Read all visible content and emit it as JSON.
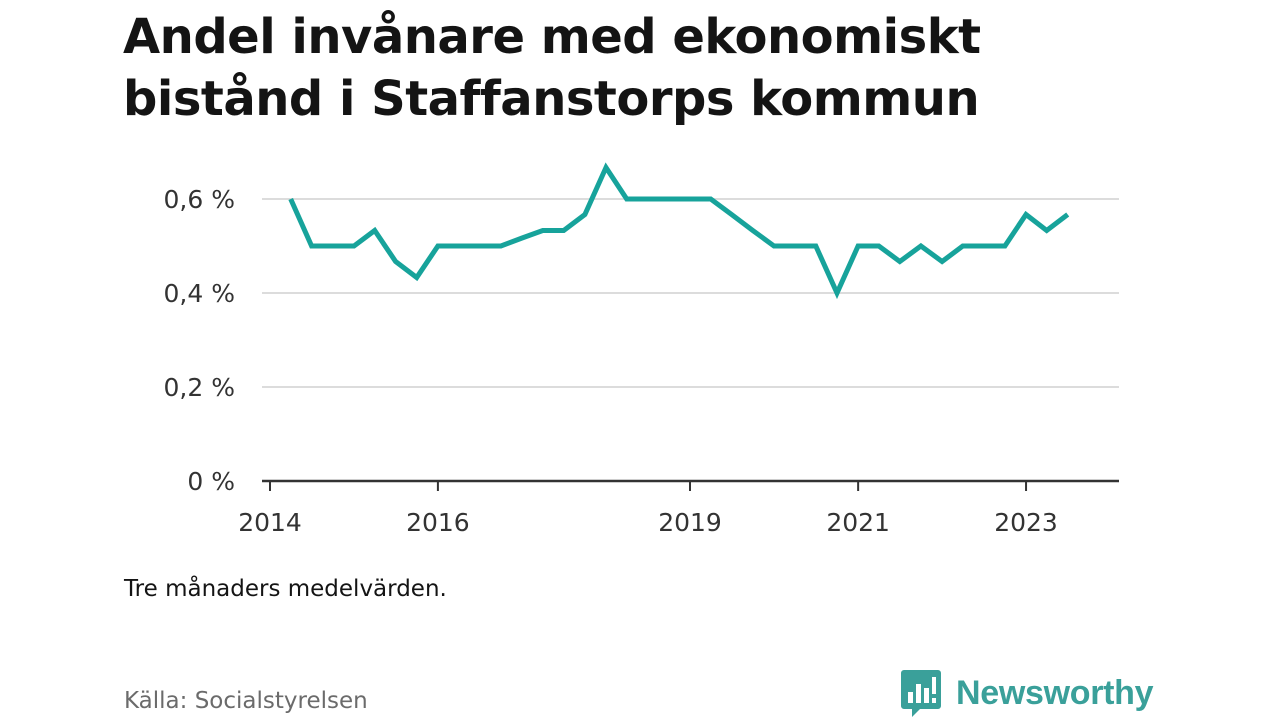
{
  "title_lines": [
    "Andel invånare med ekonomiskt",
    "bistånd i Staffanstorps kommun"
  ],
  "note": "Tre månaders medelvärden.",
  "source": "Källa: Socialstyrelsen",
  "brand": {
    "name": "Newsworthy",
    "icon": "newsworthy-logo-icon",
    "color": "#3aa09a"
  },
  "chart_data": {
    "type": "line",
    "title": "Andel invånare med ekonomiskt bistånd i Staffanstorps kommun",
    "xlabel": "",
    "ylabel": "",
    "ylim": [
      0,
      0.7
    ],
    "xlim": [
      "2014-01-01",
      "2024-01-01"
    ],
    "y_ticks": [
      0,
      0.2,
      0.4,
      0.6
    ],
    "y_tick_labels": [
      "0 %",
      "0,2 %",
      "0,4 %",
      "0,6 %"
    ],
    "x_ticks": [
      "2014-01-01",
      "2016-01-01",
      "2019-01-01",
      "2021-01-01",
      "2023-01-01"
    ],
    "x_tick_labels": [
      "2014",
      "2016",
      "2019",
      "2021",
      "2023"
    ],
    "grid": true,
    "line_color": "#17a39b",
    "series": [
      {
        "x": [
          "2014-04-01",
          "2014-07-01",
          "2014-10-01",
          "2015-01-01",
          "2015-04-01",
          "2015-07-01",
          "2015-10-01",
          "2016-01-01",
          "2016-04-01",
          "2016-07-01",
          "2016-10-01",
          "2017-01-01",
          "2017-04-01",
          "2017-07-01",
          "2017-10-01",
          "2018-01-01",
          "2018-04-01",
          "2018-07-01",
          "2018-10-01",
          "2019-01-01",
          "2019-04-01",
          "2019-07-01",
          "2019-10-01",
          "2020-01-01",
          "2020-04-01",
          "2020-07-01",
          "2020-10-01",
          "2021-01-01",
          "2021-04-01",
          "2021-07-01",
          "2021-10-01",
          "2022-01-01",
          "2022-04-01",
          "2022-07-01",
          "2022-10-01",
          "2023-01-01",
          "2023-04-01",
          "2023-07-01"
        ],
        "values": [
          0.6,
          0.5,
          0.5,
          0.5,
          0.533,
          0.467,
          0.433,
          0.5,
          0.5,
          0.5,
          0.5,
          0.517,
          0.533,
          0.533,
          0.567,
          0.667,
          0.6,
          0.6,
          0.6,
          0.6,
          0.6,
          0.567,
          0.533,
          0.5,
          0.5,
          0.5,
          0.4,
          0.5,
          0.5,
          0.467,
          0.5,
          0.467,
          0.5,
          0.5,
          0.5,
          0.567,
          0.533,
          0.567
        ]
      }
    ]
  }
}
